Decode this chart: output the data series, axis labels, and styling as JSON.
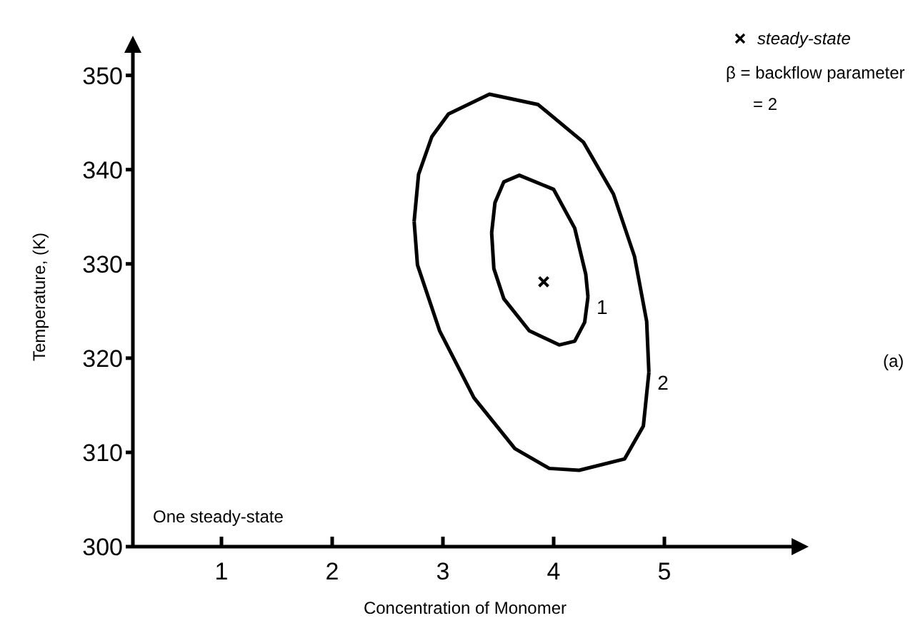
{
  "chart_data": {
    "type": "line",
    "xlabel": "Concentration of Monomer",
    "ylabel": "Temperature, (K)",
    "xlim": [
      0.2,
      6.2
    ],
    "ylim": [
      300,
      353
    ],
    "xticks": [
      1,
      2,
      3,
      4,
      5
    ],
    "yticks": [
      300,
      310,
      320,
      330,
      340,
      350
    ],
    "legend": "top right",
    "grid": false,
    "line_style": "solid",
    "annotations": [
      "β = backflow parameter",
      "= 2",
      "(a)",
      "One steady-state"
    ],
    "series": [
      {
        "name": "1",
        "type": "line",
        "color": "#000000",
        "x": [
          3.44,
          3.47,
          3.55,
          3.69,
          4.0,
          4.19,
          4.29,
          4.31,
          null,
          3.44,
          3.46,
          3.55,
          3.78,
          4.05,
          4.19,
          4.28,
          4.31
        ],
        "values": [
          333.3,
          336.5,
          338.7,
          339.4,
          337.9,
          333.8,
          328.9,
          326.5,
          null,
          333.3,
          329.5,
          326.3,
          322.9,
          321.4,
          321.8,
          323.8,
          326.5
        ]
      },
      {
        "name": "2",
        "type": "line",
        "color": "#000000",
        "x": [
          2.74,
          2.78,
          2.9,
          3.05,
          3.42,
          3.86,
          4.27,
          4.54,
          4.73,
          4.84,
          4.86,
          null,
          2.74,
          2.77,
          2.97,
          3.28,
          3.65,
          3.96,
          4.23,
          4.64,
          4.81,
          4.86
        ],
        "values": [
          334.5,
          339.5,
          343.5,
          345.9,
          348.0,
          346.9,
          342.9,
          337.4,
          330.8,
          323.9,
          318.5,
          null,
          334.5,
          329.9,
          322.9,
          315.8,
          310.4,
          308.3,
          308.1,
          309.3,
          312.8,
          318.5
        ]
      },
      {
        "name": "steady-state",
        "type": "scatter",
        "marker": "cross",
        "color": "#000000",
        "x": [
          3.91
        ],
        "values": [
          328.1
        ]
      }
    ]
  }
}
